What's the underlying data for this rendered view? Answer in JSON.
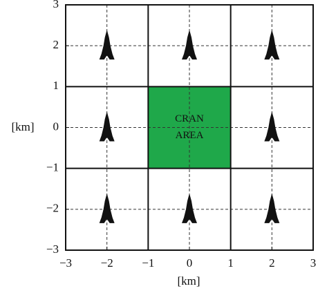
{
  "chart_data": {
    "type": "scatter",
    "xlabel": "[km]",
    "ylabel": "[km]",
    "xlim": [
      -3,
      3
    ],
    "ylim": [
      -3,
      3
    ],
    "xticks": [
      {
        "value": -3,
        "label": "−3"
      },
      {
        "value": -2,
        "label": "−2"
      },
      {
        "value": -1,
        "label": "−1"
      },
      0,
      1,
      2,
      3
    ],
    "yticks": [
      {
        "value": -3,
        "label": "−3"
      },
      {
        "value": -2,
        "label": "−2"
      },
      {
        "value": -1,
        "label": "−1"
      },
      0,
      1,
      2,
      3
    ],
    "grid_lines": [
      -2,
      0,
      2
    ],
    "cell_borders": [
      -1,
      1
    ],
    "region": {
      "x": [
        -1,
        1
      ],
      "y": [
        -1,
        1
      ],
      "color": "#1fa84a",
      "label": [
        "CRAN",
        "AREA"
      ]
    },
    "x": [
      -2,
      0,
      2,
      -2,
      2,
      -2,
      0,
      2
    ],
    "y": [
      2,
      2,
      2,
      0,
      0,
      -2,
      -2,
      -2
    ],
    "color": "#111111"
  }
}
